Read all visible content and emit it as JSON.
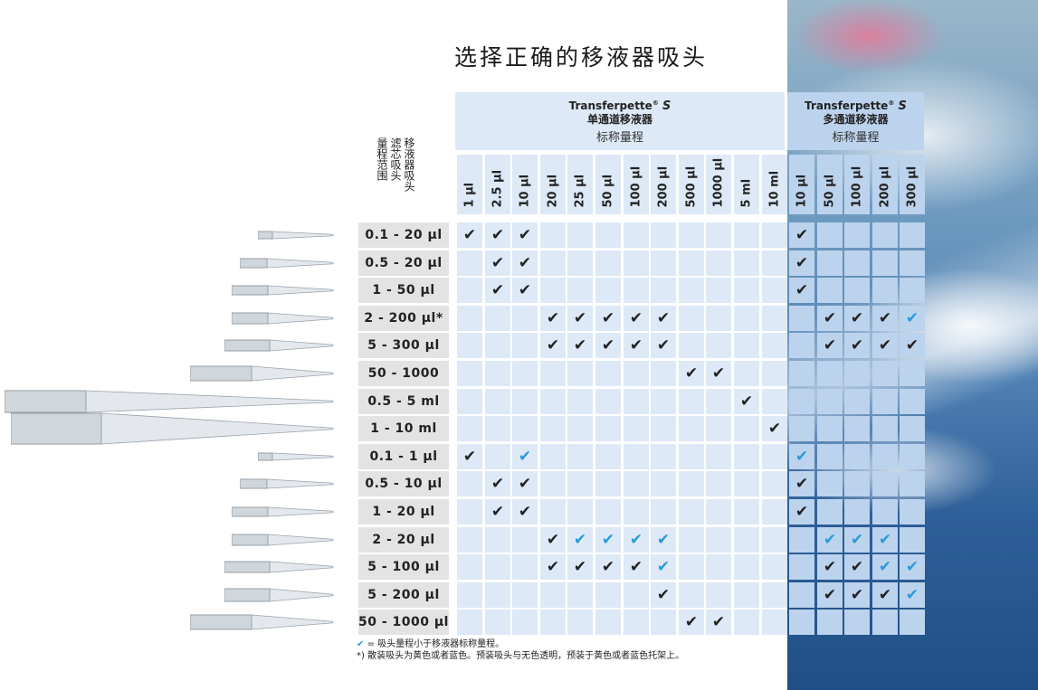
{
  "title": "选择正确的移液器吸头",
  "single": {
    "brand": "Transferpette",
    "reg": "®",
    "model": "S",
    "subtitle": "单通道移液器",
    "range_label": "标称量程",
    "columns": [
      "1 µl",
      "2.5 µl",
      "10 µl",
      "20 µl",
      "25 µl",
      "50 µl",
      "100 µl",
      "200 µl",
      "500 µl",
      "1000 µl",
      "5 ml",
      "10 ml"
    ]
  },
  "multi": {
    "brand": "Transferpette",
    "reg": "®",
    "model": "S",
    "subtitle": "多通道移液器",
    "range_label": "标称量程",
    "columns": [
      "10 µl",
      "50 µl",
      "100 µl",
      "200 µl",
      "300 µl"
    ]
  },
  "row_header": [
    "移液器吸头",
    "滤芯吸头",
    "量程范围"
  ],
  "check_glyph": "✔",
  "colors": {
    "single_bg": "#dde9f6",
    "multi_bg": "#bcd3ed",
    "label_bg": "#e3e3e3",
    "blue_check": "#2a9ad8"
  },
  "rows": [
    {
      "label": "0.1 - 20 µl",
      "single": [
        "k",
        "k",
        "k",
        "",
        "",
        "",
        "",
        "",
        "",
        "",
        "",
        ""
      ],
      "multi": [
        "k",
        "",
        "",
        "",
        ""
      ]
    },
    {
      "label": "0.5 - 20 µl",
      "single": [
        "",
        "k",
        "k",
        "",
        "",
        "",
        "",
        "",
        "",
        "",
        "",
        ""
      ],
      "multi": [
        "k",
        "",
        "",
        "",
        ""
      ]
    },
    {
      "label": "1 - 50 µl",
      "single": [
        "",
        "k",
        "k",
        "",
        "",
        "",
        "",
        "",
        "",
        "",
        "",
        ""
      ],
      "multi": [
        "k",
        "",
        "",
        "",
        ""
      ]
    },
    {
      "label": "2 - 200 µl*",
      "single": [
        "",
        "",
        "",
        "k",
        "k",
        "k",
        "k",
        "k",
        "",
        "",
        "",
        ""
      ],
      "multi": [
        "",
        "k",
        "k",
        "k",
        "b"
      ]
    },
    {
      "label": "5 - 300 µl",
      "single": [
        "",
        "",
        "",
        "k",
        "k",
        "k",
        "k",
        "k",
        "",
        "",
        "",
        ""
      ],
      "multi": [
        "",
        "k",
        "k",
        "k",
        "k"
      ]
    },
    {
      "label": "50 - 1000 µl*",
      "single": [
        "",
        "",
        "",
        "",
        "",
        "",
        "",
        "",
        "k",
        "k",
        "",
        ""
      ],
      "multi": [
        "",
        "",
        "",
        "",
        ""
      ]
    },
    {
      "label": "0.5 - 5 ml",
      "single": [
        "",
        "",
        "",
        "",
        "",
        "",
        "",
        "",
        "",
        "",
        "k",
        ""
      ],
      "multi": [
        "",
        "",
        "",
        "",
        ""
      ]
    },
    {
      "label": "1 - 10 ml",
      "single": [
        "",
        "",
        "",
        "",
        "",
        "",
        "",
        "",
        "",
        "",
        "",
        "k"
      ],
      "multi": [
        "",
        "",
        "",
        "",
        ""
      ]
    },
    {
      "label": "0.1 - 1 µl",
      "single": [
        "k",
        "",
        "b",
        "",
        "",
        "",
        "",
        "",
        "",
        "",
        "",
        ""
      ],
      "multi": [
        "b",
        "",
        "",
        "",
        ""
      ]
    },
    {
      "label": "0.5 - 10 µl",
      "single": [
        "",
        "k",
        "k",
        "",
        "",
        "",
        "",
        "",
        "",
        "",
        "",
        ""
      ],
      "multi": [
        "k",
        "",
        "",
        "",
        ""
      ]
    },
    {
      "label": "1 - 20 µl",
      "single": [
        "",
        "k",
        "k",
        "",
        "",
        "",
        "",
        "",
        "",
        "",
        "",
        ""
      ],
      "multi": [
        "k",
        "",
        "",
        "",
        ""
      ]
    },
    {
      "label": "2 - 20 µl",
      "single": [
        "",
        "",
        "",
        "k",
        "b",
        "b",
        "b",
        "b",
        "",
        "",
        "",
        ""
      ],
      "multi": [
        "",
        "b",
        "b",
        "b",
        ""
      ]
    },
    {
      "label": "5 - 100 µl",
      "single": [
        "",
        "",
        "",
        "k",
        "k",
        "k",
        "k",
        "b",
        "",
        "",
        "",
        ""
      ],
      "multi": [
        "",
        "k",
        "k",
        "b",
        "b"
      ]
    },
    {
      "label": "5 - 200 µl",
      "single": [
        "",
        "",
        "",
        "",
        "",
        "",
        "",
        "k",
        "",
        "",
        "",
        ""
      ],
      "multi": [
        "",
        "k",
        "k",
        "k",
        "b"
      ]
    },
    {
      "label": "50 - 1000 µl",
      "single": [
        "",
        "",
        "",
        "",
        "",
        "",
        "",
        "",
        "k",
        "k",
        "",
        ""
      ],
      "multi": [
        "",
        "",
        "",
        "",
        ""
      ]
    }
  ],
  "footnotes": {
    "check_note_mark": "✔",
    "check_note": " = 吸头量程小于移液器标称量程。",
    "star_mark": "*)",
    "star_note": " 散装吸头为黄色或者蓝色。预装吸头与无色透明，预装于黄色或者蓝色托架上。"
  }
}
